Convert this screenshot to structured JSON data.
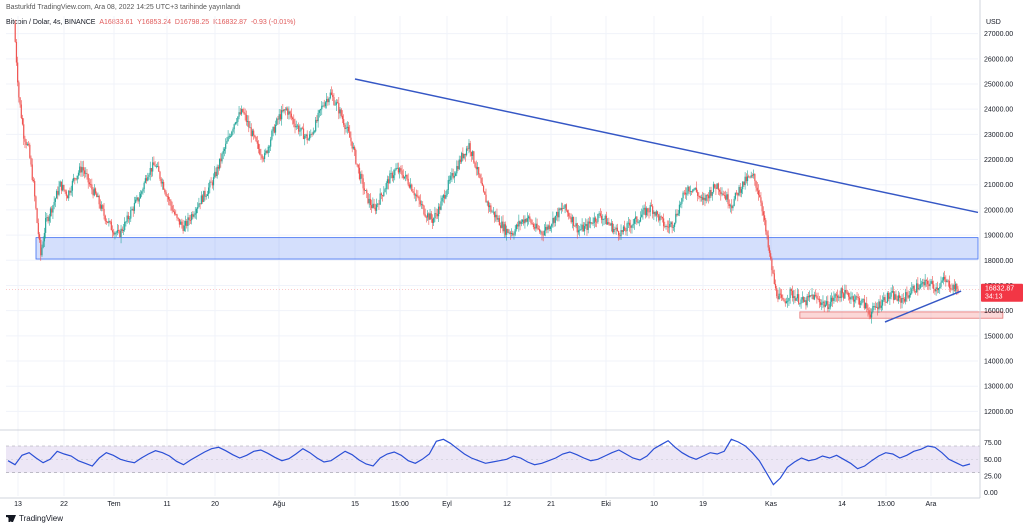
{
  "header": {
    "publisher_line": "Basturkfd TradingView.com, Ara 08, 2022 14:25 UTC+3 tarihinde yayınlandı"
  },
  "symbol": {
    "name": "Bitcoin / Dolar, 4s, BINANCE",
    "open": "A16833.61",
    "high": "Y16853.24",
    "low": "D16798.25",
    "close": "K16832.87",
    "change": "-0.93 (-0.01%)"
  },
  "footer": {
    "brand": "TradingView"
  },
  "colors": {
    "up": "#26a69a",
    "down": "#ef5350",
    "trendline": "#3557c5",
    "zone_blue": "#3d6df2",
    "zone_red": "#f7a6a6",
    "rsi_line": "#2a4fd6",
    "rsi_band": "#ede7f6",
    "price_tag": "#f23645"
  },
  "chart_data": [
    {
      "type": "candlestick",
      "title": "",
      "currency_label": "USD",
      "y_ticks": [
        "27000.00",
        "26000.00",
        "25000.00",
        "24000.00",
        "23000.00",
        "22000.00",
        "21000.00",
        "20000.00",
        "19000.00",
        "18000.00",
        "17000.00",
        "16000.00",
        "15000.00",
        "14000.00",
        "13000.00",
        "12000.00"
      ],
      "ylim": [
        11500,
        27700
      ],
      "x_ticks": [
        "13",
        "22",
        "Tem",
        "11",
        "20",
        "Ağu",
        "15",
        "15:00",
        "Eyl",
        "12",
        "21",
        "Eki",
        "10",
        "19",
        "Kas",
        "14",
        "15:00",
        "Ara"
      ],
      "last_price_label": "16832.87",
      "countdown_label": "34:13",
      "close_path": [
        [
          0,
          27400
        ],
        [
          4,
          24500
        ],
        [
          8,
          23000
        ],
        [
          12,
          22400
        ],
        [
          16,
          21000
        ],
        [
          19,
          19500
        ],
        [
          22,
          18200
        ],
        [
          26,
          19500
        ],
        [
          32,
          20200
        ],
        [
          38,
          21000
        ],
        [
          44,
          20600
        ],
        [
          50,
          21300
        ],
        [
          56,
          21700
        ],
        [
          62,
          21000
        ],
        [
          68,
          20500
        ],
        [
          74,
          19800
        ],
        [
          80,
          19300
        ],
        [
          86,
          19000
        ],
        [
          92,
          19500
        ],
        [
          98,
          20100
        ],
        [
          104,
          20600
        ],
        [
          110,
          21500
        ],
        [
          116,
          21800
        ],
        [
          122,
          21100
        ],
        [
          128,
          20300
        ],
        [
          134,
          19600
        ],
        [
          140,
          19300
        ],
        [
          146,
          19800
        ],
        [
          152,
          20300
        ],
        [
          158,
          20700
        ],
        [
          164,
          21200
        ],
        [
          170,
          22000
        ],
        [
          176,
          22800
        ],
        [
          182,
          23600
        ],
        [
          188,
          23900
        ],
        [
          194,
          23200
        ],
        [
          200,
          22500
        ],
        [
          206,
          22100
        ],
        [
          212,
          23000
        ],
        [
          218,
          23700
        ],
        [
          224,
          24000
        ],
        [
          230,
          23500
        ],
        [
          236,
          23100
        ],
        [
          242,
          22800
        ],
        [
          248,
          23400
        ],
        [
          254,
          24200
        ],
        [
          260,
          24600
        ],
        [
          266,
          24100
        ],
        [
          272,
          23400
        ],
        [
          278,
          22600
        ],
        [
          284,
          21400
        ],
        [
          290,
          20500
        ],
        [
          296,
          20000
        ],
        [
          302,
          20600
        ],
        [
          308,
          21200
        ],
        [
          314,
          21600
        ],
        [
          320,
          21400
        ],
        [
          326,
          21000
        ],
        [
          332,
          20400
        ],
        [
          338,
          19900
        ],
        [
          344,
          19600
        ],
        [
          350,
          20100
        ],
        [
          356,
          20900
        ],
        [
          362,
          21500
        ],
        [
          368,
          22100
        ],
        [
          374,
          22600
        ],
        [
          380,
          21700
        ],
        [
          386,
          20600
        ],
        [
          392,
          20000
        ],
        [
          398,
          19600
        ],
        [
          404,
          19200
        ],
        [
          410,
          19100
        ],
        [
          416,
          19500
        ],
        [
          422,
          19700
        ],
        [
          428,
          19300
        ],
        [
          434,
          19100
        ],
        [
          440,
          19400
        ],
        [
          446,
          19800
        ],
        [
          452,
          20100
        ],
        [
          458,
          19700
        ],
        [
          464,
          19200
        ],
        [
          470,
          19300
        ],
        [
          476,
          19600
        ],
        [
          482,
          19800
        ],
        [
          488,
          19500
        ],
        [
          494,
          19200
        ],
        [
          500,
          19100
        ],
        [
          506,
          19400
        ],
        [
          512,
          19600
        ],
        [
          518,
          19900
        ],
        [
          524,
          20100
        ],
        [
          530,
          19700
        ],
        [
          536,
          19300
        ],
        [
          542,
          19500
        ],
        [
          548,
          20300
        ],
        [
          554,
          20900
        ],
        [
          560,
          20800
        ],
        [
          566,
          20300
        ],
        [
          572,
          20700
        ],
        [
          578,
          21000
        ],
        [
          584,
          20600
        ],
        [
          590,
          20200
        ],
        [
          596,
          20800
        ],
        [
          602,
          21200
        ],
        [
          608,
          21300
        ],
        [
          614,
          20400
        ],
        [
          620,
          18500
        ],
        [
          626,
          16800
        ],
        [
          632,
          16300
        ],
        [
          638,
          16700
        ],
        [
          644,
          16500
        ],
        [
          650,
          16300
        ],
        [
          656,
          16600
        ],
        [
          662,
          16400
        ],
        [
          668,
          16200
        ],
        [
          674,
          16500
        ],
        [
          680,
          16700
        ],
        [
          686,
          16600
        ],
        [
          692,
          16500
        ],
        [
          698,
          16300
        ],
        [
          704,
          15900
        ],
        [
          710,
          16200
        ],
        [
          716,
          16500
        ],
        [
          722,
          16600
        ],
        [
          728,
          16400
        ],
        [
          734,
          16600
        ],
        [
          740,
          16900
        ],
        [
          746,
          17000
        ],
        [
          752,
          17100
        ],
        [
          758,
          16900
        ],
        [
          764,
          17200
        ],
        [
          770,
          17000
        ],
        [
          776,
          16833
        ]
      ],
      "drawings": [
        {
          "kind": "trendline",
          "from": [
            264,
            25200
          ],
          "to": [
            1000,
            19900
          ]
        },
        {
          "kind": "trendline",
          "from": [
            706,
            15550
          ],
          "to": [
            772,
            16780
          ]
        },
        {
          "kind": "zone",
          "x_from": 0,
          "x_to": 780,
          "y_from": 18050,
          "y_to": 18900
        },
        {
          "kind": "zone",
          "x_from": 646,
          "x_to": 780,
          "y_from": 15700,
          "y_to": 15950
        }
      ]
    },
    {
      "type": "line",
      "title": "",
      "y_ticks": [
        "75.00",
        "50.00",
        "25.00",
        "0.00"
      ],
      "ylim": [
        -5,
        85
      ],
      "band": [
        30,
        70
      ],
      "values": [
        48,
        42,
        56,
        60,
        52,
        45,
        50,
        62,
        58,
        55,
        48,
        44,
        40,
        52,
        60,
        56,
        50,
        47,
        45,
        52,
        58,
        63,
        60,
        55,
        47,
        42,
        49,
        55,
        61,
        66,
        68,
        63,
        57,
        52,
        56,
        62,
        64,
        59,
        53,
        48,
        51,
        58,
        66,
        60,
        52,
        46,
        48,
        55,
        62,
        57,
        49,
        43,
        40,
        52,
        58,
        61,
        56,
        48,
        44,
        50,
        58,
        77,
        80,
        74,
        66,
        58,
        52,
        48,
        44,
        46,
        48,
        50,
        55,
        52,
        46,
        42,
        44,
        48,
        52,
        58,
        61,
        57,
        52,
        48,
        50,
        55,
        60,
        64,
        58,
        52,
        49,
        55,
        66,
        72,
        78,
        68,
        60,
        54,
        50,
        55,
        60,
        58,
        62,
        80,
        76,
        70,
        60,
        48,
        30,
        12,
        22,
        38,
        46,
        52,
        48,
        50,
        55,
        52,
        56,
        50,
        44,
        36,
        40,
        48,
        55,
        60,
        58,
        52,
        56,
        62,
        65,
        70,
        68,
        60,
        50,
        45,
        40,
        43
      ]
    }
  ]
}
